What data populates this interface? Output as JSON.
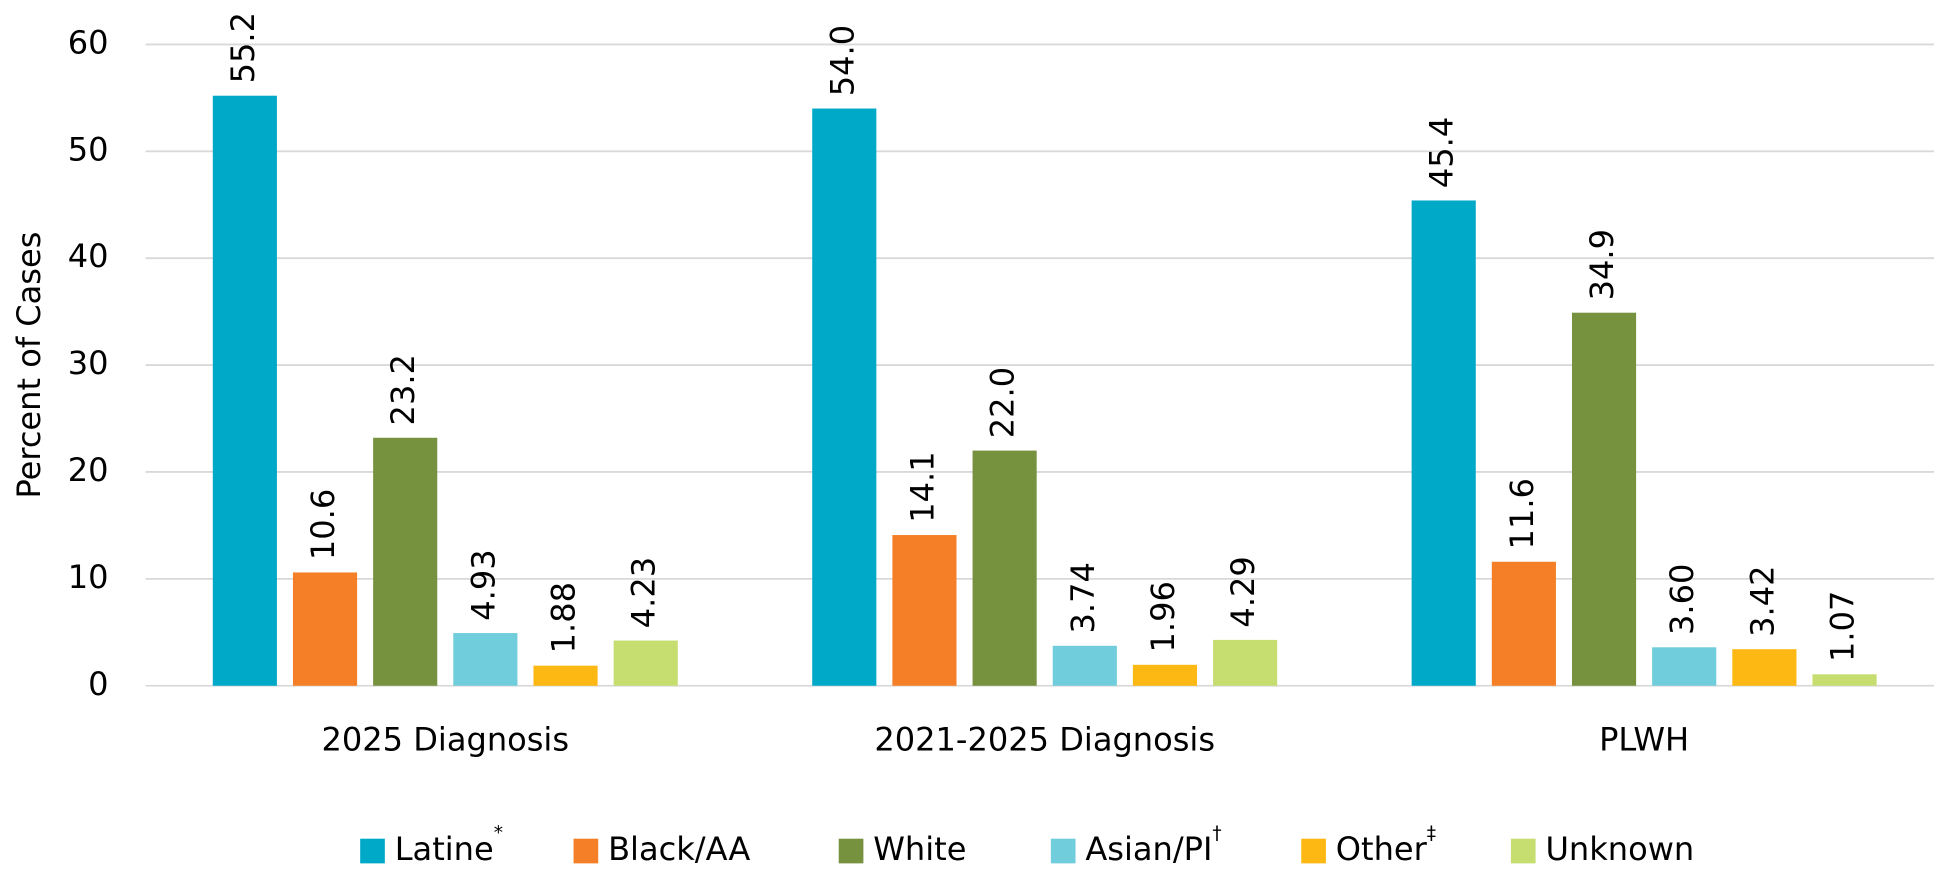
{
  "chart_data": {
    "type": "bar",
    "y_label": "Percent of Cases",
    "categories": [
      "2025 Diagnosis",
      "2021-2025 Diagnosis",
      "PLWH"
    ],
    "series": [
      {
        "name": "Latine",
        "note": "*",
        "color": "#00a9c8",
        "values": [
          55.2,
          54.0,
          45.4
        ],
        "value_labels": [
          "55.2",
          "54.0",
          "45.4"
        ]
      },
      {
        "name": "Black/AA",
        "color": "#f47f26",
        "values": [
          10.6,
          14.1,
          11.6
        ],
        "value_labels": [
          "10.6",
          "14.1",
          "11.6"
        ]
      },
      {
        "name": "White",
        "color": "#77923e",
        "values": [
          23.2,
          22.0,
          34.9
        ],
        "value_labels": [
          "23.2",
          "22.0",
          "34.9"
        ]
      },
      {
        "name": "Asian/PI",
        "note": "†",
        "color": "#70cddb",
        "values": [
          4.93,
          3.74,
          3.6
        ],
        "value_labels": [
          "4.93",
          "3.74",
          "3.60"
        ]
      },
      {
        "name": "Other",
        "note": "‡",
        "color": "#fdb813",
        "values": [
          1.88,
          1.96,
          3.42
        ],
        "value_labels": [
          "1.88",
          "1.96",
          "3.42"
        ]
      },
      {
        "name": "Unknown",
        "color": "#c6dd6f",
        "values": [
          4.23,
          4.29,
          1.07
        ],
        "value_labels": [
          "4.23",
          "4.29",
          "1.07"
        ]
      }
    ],
    "ylim": [
      0,
      60
    ],
    "yticks": [
      0,
      10,
      20,
      30,
      40,
      50,
      60
    ],
    "grid": true,
    "legend": "bottom"
  }
}
